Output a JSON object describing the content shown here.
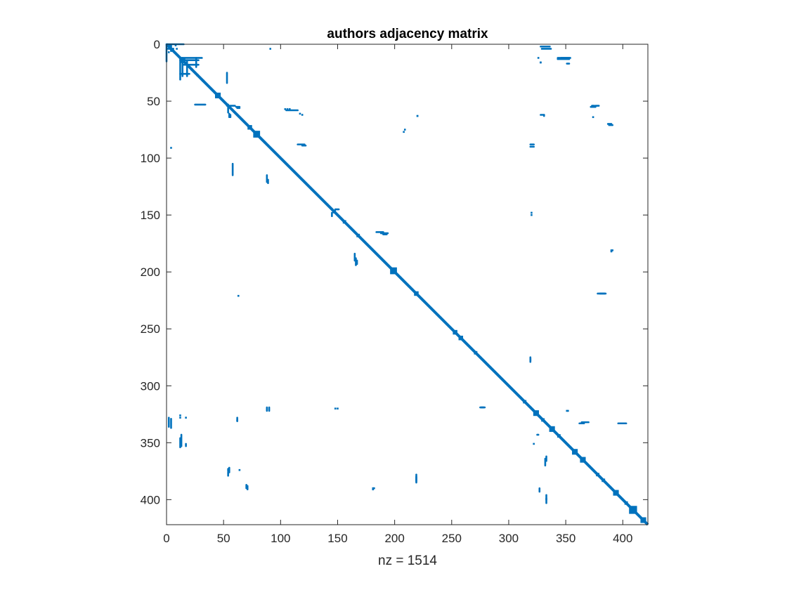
{
  "chart_data": {
    "type": "spy",
    "title": "authors adjacency matrix",
    "xlabel": "nz = 1514",
    "ylabel": "",
    "xlim": [
      0,
      422
    ],
    "ylim": [
      0,
      422
    ],
    "y_direction": "reverse",
    "x_ticks": [
      "0",
      "50",
      "100",
      "150",
      "200",
      "250",
      "300",
      "350",
      "400"
    ],
    "y_ticks": [
      "0",
      "50",
      "100",
      "150",
      "200",
      "250",
      "300",
      "350",
      "400"
    ],
    "grid": false,
    "marker_color": "#0072BD",
    "diagonal_blocks": [
      [
        14,
        2.5
      ],
      [
        22,
        1
      ],
      [
        27,
        1
      ],
      [
        32,
        1
      ],
      [
        45,
        2.5
      ],
      [
        53,
        1
      ],
      [
        73,
        2
      ],
      [
        79,
        3
      ],
      [
        86,
        1
      ],
      [
        147,
        1.5
      ],
      [
        156,
        1.5
      ],
      [
        168,
        1.5
      ],
      [
        199,
        3
      ],
      [
        219,
        2
      ],
      [
        253,
        2
      ],
      [
        258,
        2
      ],
      [
        271,
        1.5
      ],
      [
        314,
        1.5
      ],
      [
        324,
        2.5
      ],
      [
        330,
        1.5
      ],
      [
        338,
        2.5
      ],
      [
        344,
        1.5
      ],
      [
        358,
        2.5
      ],
      [
        365,
        2.5
      ],
      [
        378,
        1.5
      ],
      [
        383,
        1.5
      ],
      [
        394,
        2.5
      ],
      [
        403,
        1.5
      ],
      [
        409,
        3.5
      ],
      [
        418,
        2.5
      ]
    ],
    "points": [
      [
        2,
        2
      ],
      [
        3,
        1
      ],
      [
        8,
        1
      ],
      [
        4,
        5
      ],
      [
        6,
        6
      ],
      [
        2,
        7
      ],
      [
        3,
        4
      ],
      [
        9,
        4
      ],
      [
        91,
        4
      ],
      [
        4,
        91
      ],
      [
        104,
        57
      ],
      [
        106,
        57
      ],
      [
        108,
        57
      ],
      [
        117,
        61
      ],
      [
        119,
        62
      ],
      [
        209,
        75
      ],
      [
        220,
        63
      ],
      [
        208,
        77
      ],
      [
        220,
        63
      ],
      [
        148,
        320
      ],
      [
        320,
        148
      ],
      [
        181,
        390
      ],
      [
        390,
        181
      ],
      [
        391,
        181
      ],
      [
        181,
        391
      ],
      [
        328,
        16
      ],
      [
        328,
        16
      ],
      [
        326,
        12
      ],
      [
        12,
        326
      ],
      [
        351,
        322
      ],
      [
        322,
        351
      ],
      [
        374,
        64
      ],
      [
        64,
        374
      ],
      [
        320,
        150
      ],
      [
        150,
        320
      ],
      [
        390,
        182
      ],
      [
        182,
        390
      ],
      [
        352,
        322
      ],
      [
        12,
        328
      ],
      [
        17,
        328
      ],
      [
        63,
        221
      ]
    ],
    "segments": [
      [
        0,
        0,
        15,
        0
      ],
      [
        0,
        0,
        0,
        15
      ],
      [
        4,
        1,
        4,
        6
      ],
      [
        1,
        4,
        6,
        4
      ],
      [
        12,
        12,
        31,
        12
      ],
      [
        12,
        12,
        12,
        31
      ],
      [
        14,
        12,
        14,
        28
      ],
      [
        12,
        14,
        28,
        14
      ],
      [
        18,
        14,
        18,
        28
      ],
      [
        14,
        18,
        28,
        18
      ],
      [
        26,
        12,
        26,
        20
      ],
      [
        12,
        26,
        20,
        26
      ],
      [
        53,
        25,
        53,
        34
      ],
      [
        25,
        53,
        34,
        53
      ],
      [
        53,
        54,
        60,
        54
      ],
      [
        54,
        53,
        54,
        60
      ],
      [
        55,
        61,
        55,
        64
      ],
      [
        61,
        55,
        64,
        55
      ],
      [
        56,
        62,
        56,
        64
      ],
      [
        62,
        56,
        64,
        56
      ],
      [
        58,
        105,
        58,
        115
      ],
      [
        105,
        58,
        115,
        58
      ],
      [
        88,
        115,
        88,
        121
      ],
      [
        115,
        88,
        121,
        88
      ],
      [
        89,
        119,
        89,
        122
      ],
      [
        119,
        89,
        122,
        89
      ],
      [
        145,
        148,
        145,
        151
      ],
      [
        148,
        145,
        151,
        145
      ],
      [
        166,
        188,
        166,
        194
      ],
      [
        188,
        166,
        194,
        166
      ],
      [
        165,
        184,
        165,
        190
      ],
      [
        184,
        165,
        190,
        165
      ],
      [
        167,
        190,
        167,
        193
      ],
      [
        190,
        167,
        193,
        167
      ],
      [
        4,
        329,
        4,
        337
      ],
      [
        329,
        4,
        337,
        4
      ],
      [
        13,
        343,
        13,
        353
      ],
      [
        343,
        13,
        353,
        13
      ],
      [
        17,
        351,
        17,
        353
      ],
      [
        351,
        17,
        353,
        17
      ],
      [
        62,
        328,
        62,
        331
      ],
      [
        328,
        62,
        331,
        62
      ],
      [
        55,
        372,
        55,
        376
      ],
      [
        372,
        55,
        376,
        55
      ],
      [
        71,
        388,
        71,
        391
      ],
      [
        388,
        71,
        391,
        71
      ],
      [
        90,
        319,
        90,
        322
      ],
      [
        319,
        90,
        322,
        90
      ],
      [
        219,
        378,
        219,
        384
      ],
      [
        378,
        219,
        384,
        219
      ],
      [
        275,
        319,
        278,
        319
      ],
      [
        319,
        275,
        319,
        278
      ],
      [
        333,
        362,
        333,
        366
      ],
      [
        362,
        333,
        366,
        333
      ],
      [
        333,
        396,
        333,
        400
      ],
      [
        396,
        333,
        400,
        333
      ],
      [
        328,
        2,
        336,
        2
      ],
      [
        2,
        328,
        2,
        336
      ],
      [
        331,
        62,
        331,
        63
      ],
      [
        62,
        330,
        62,
        331
      ],
      [
        346,
        12,
        354,
        12
      ],
      [
        12,
        346,
        12,
        354
      ],
      [
        343,
        12,
        353,
        12
      ],
      [
        364,
        332,
        370,
        332
      ],
      [
        332,
        364,
        332,
        370
      ],
      [
        399,
        333,
        403,
        333
      ],
      [
        333,
        399,
        333,
        403
      ],
      [
        325,
        343,
        326,
        343
      ],
      [
        319,
        88,
        322,
        88
      ],
      [
        88,
        319,
        88,
        322
      ],
      [
        319,
        276,
        319,
        279
      ],
      [
        276,
        319,
        279,
        319
      ],
      [
        373,
        54,
        375,
        54
      ],
      [
        54,
        373,
        54,
        375
      ],
      [
        372,
        55,
        376,
        55
      ],
      [
        376,
        54,
        379,
        54
      ],
      [
        54,
        376,
        54,
        379
      ],
      [
        380,
        219,
        385,
        219
      ],
      [
        219,
        380,
        219,
        385
      ],
      [
        387,
        70,
        390,
        70
      ],
      [
        70,
        387,
        70,
        390
      ],
      [
        327,
        390,
        327,
        393
      ]
    ]
  }
}
